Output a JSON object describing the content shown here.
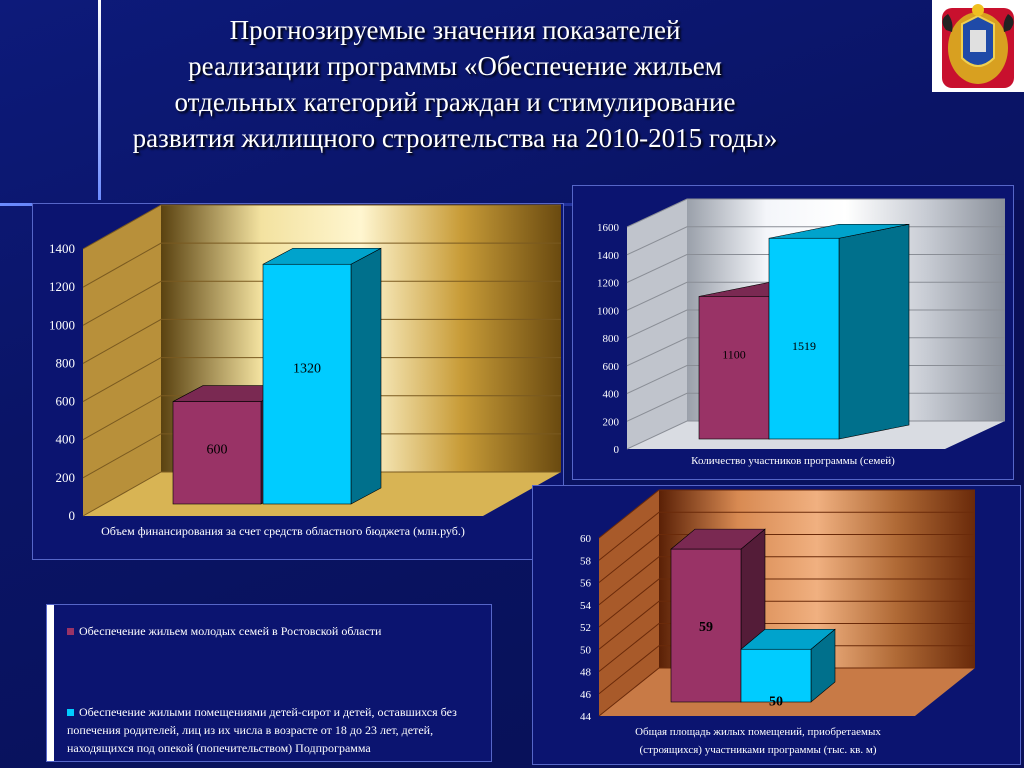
{
  "title": "Прогнозируемые значения показателей реализации программы «Обеспечение жильем отдельных категорий граждан и стимулирование развития жилищного строительства на 2010-2015 годы»",
  "title_lines": [
    "Прогнозируемые значения показателей",
    "реализации программы «Обеспечение жильем",
    "отдельных категорий граждан и стимулирование",
    "развития жилищного строительства на 2010-2015 годы»"
  ],
  "colors": {
    "series1": "#993366",
    "series2": "#00ccff"
  },
  "legend": [
    {
      "label": "Обеспечение жильем молодых семей в Ростовской области"
    },
    {
      "label": "Обеспечение жилыми помещениями детей-сирот и детей, оставшихся без попечения родителей, лиц из их числа в возрасте от 18 до 23 лет, детей, находящихся под опекой (попечительством) Подпрограмма"
    }
  ],
  "chart_data": [
    {
      "type": "bar",
      "xlabel": "Объем финансирования за счет средств областного бюджета (млн.руб.)",
      "ylim": [
        0,
        1400
      ],
      "yticks": [
        0,
        200,
        400,
        600,
        800,
        1000,
        1200,
        1400
      ],
      "values": [
        600,
        1320
      ],
      "value_labels": [
        "600",
        "1320"
      ],
      "theme": "gold"
    },
    {
      "type": "bar",
      "xlabel": "Количество участников программы (семей)",
      "ylim": [
        0,
        1600
      ],
      "yticks": [
        0,
        200,
        400,
        600,
        800,
        1000,
        1200,
        1400,
        1600
      ],
      "values": [
        1100,
        1519
      ],
      "value_labels": [
        "1100",
        "1519"
      ],
      "theme": "silver"
    },
    {
      "type": "bar",
      "xlabel": "Общая площадь жилых помещений, приобретаемых (строящихся) участниками программы (тыс. кв. м)",
      "ylim": [
        44,
        60
      ],
      "yticks": [
        44,
        46,
        48,
        50,
        52,
        54,
        56,
        58,
        60
      ],
      "values": [
        59,
        50
      ],
      "value_labels": [
        "59",
        "50"
      ],
      "theme": "copper"
    }
  ]
}
